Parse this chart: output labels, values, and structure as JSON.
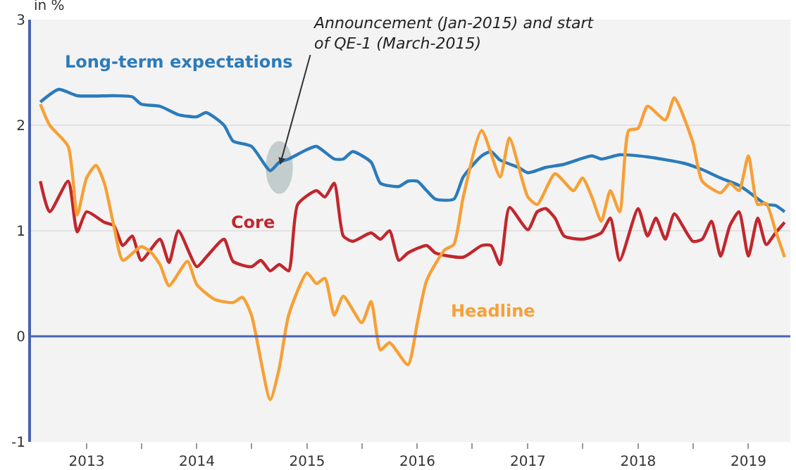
{
  "chart_data": {
    "type": "line",
    "ylabel": "in %",
    "xlim": [
      "2012-07-01",
      "2019-05-20"
    ],
    "xticks": [
      {
        "value": "2013-01-01",
        "label": "2013"
      },
      {
        "value": "2013-07-01",
        "label": null
      },
      {
        "value": "2014-01-01",
        "label": "2014"
      },
      {
        "value": "2014-07-01",
        "label": null
      },
      {
        "value": "2015-01-01",
        "label": "2015"
      },
      {
        "value": "2015-07-01",
        "label": null
      },
      {
        "value": "2016-01-01",
        "label": "2016"
      },
      {
        "value": "2016-07-01",
        "label": null
      },
      {
        "value": "2017-01-01",
        "label": "2017"
      },
      {
        "value": "2017-07-01",
        "label": null
      },
      {
        "value": "2018-01-01",
        "label": "2018"
      },
      {
        "value": "2018-07-01",
        "label": null
      },
      {
        "value": "2019-01-01",
        "label": "2019"
      }
    ],
    "ylim": [
      -1,
      3
    ],
    "yticks": [
      -1,
      0,
      1,
      2,
      3
    ],
    "grid": "y",
    "legend": false,
    "ref_lines": [
      {
        "axis": "y",
        "value": 0,
        "label": null,
        "color": "#4a63b0"
      }
    ],
    "annotations": [
      {
        "text": "Announcement (Jan-2015) and start of QE-1 (March-2015)",
        "x": "2014-10",
        "y": 1.6
      }
    ],
    "series": [
      {
        "name": "Long-term expectations",
        "color": "#2b7bba",
        "x": [
          "2012-08",
          "2012-10",
          "2012-12",
          "2013-04",
          "2013-06",
          "2013-07",
          "2013-09",
          "2013-11",
          "2014-01",
          "2014-02",
          "2014-04",
          "2014-05",
          "2014-07",
          "2014-09",
          "2014-10",
          "2014-11",
          "2015-01",
          "2015-02",
          "2015-04",
          "2015-05",
          "2015-06",
          "2015-08",
          "2015-09",
          "2015-11",
          "2015-12",
          "2016-01",
          "2016-02",
          "2016-03",
          "2016-05",
          "2016-06",
          "2016-08",
          "2016-09",
          "2016-10",
          "2016-12",
          "2017-01",
          "2017-03",
          "2017-05",
          "2017-08",
          "2017-09",
          "2017-11",
          "2018-02",
          "2018-06",
          "2018-08",
          "2018-10",
          "2018-12",
          "2019-01",
          "2019-03",
          "2019-04",
          "2019-05"
        ],
        "values": [
          2.22,
          2.34,
          2.28,
          2.28,
          2.27,
          2.2,
          2.18,
          2.1,
          2.08,
          2.12,
          2.0,
          1.85,
          1.8,
          1.57,
          1.65,
          1.68,
          1.77,
          1.8,
          1.68,
          1.68,
          1.75,
          1.65,
          1.45,
          1.42,
          1.47,
          1.47,
          1.38,
          1.3,
          1.3,
          1.51,
          1.71,
          1.75,
          1.67,
          1.6,
          1.55,
          1.6,
          1.63,
          1.71,
          1.68,
          1.72,
          1.7,
          1.64,
          1.58,
          1.5,
          1.43,
          1.37,
          1.25,
          1.24,
          1.18
        ]
      },
      {
        "name": "Core",
        "color": "#c1272d",
        "x": [
          "2012-08",
          "2012-09",
          "2012-11",
          "2012-12",
          "2013-01",
          "2013-03",
          "2013-04",
          "2013-05",
          "2013-06",
          "2013-07",
          "2013-09",
          "2013-10",
          "2013-11",
          "2014-01",
          "2014-02",
          "2014-04",
          "2014-05",
          "2014-07",
          "2014-08",
          "2014-09",
          "2014-10",
          "2014-11",
          "2014-12",
          "2015-02",
          "2015-03",
          "2015-04",
          "2015-05",
          "2015-06",
          "2015-08",
          "2015-09",
          "2015-10",
          "2015-11",
          "2015-12",
          "2016-02",
          "2016-03",
          "2016-06",
          "2016-08",
          "2016-09",
          "2016-10",
          "2016-11",
          "2017-01",
          "2017-02",
          "2017-03",
          "2017-04",
          "2017-05",
          "2017-07",
          "2017-09",
          "2017-10",
          "2017-11",
          "2018-01",
          "2018-02",
          "2018-03",
          "2018-04",
          "2018-05",
          "2018-07",
          "2018-08",
          "2018-09",
          "2018-10",
          "2018-11",
          "2018-12",
          "2019-01",
          "2019-02",
          "2019-03",
          "2019-04",
          "2019-05"
        ],
        "values": [
          1.47,
          1.18,
          1.47,
          0.99,
          1.18,
          1.08,
          1.05,
          0.86,
          0.95,
          0.72,
          0.92,
          0.7,
          1.0,
          0.66,
          0.75,
          0.92,
          0.71,
          0.66,
          0.72,
          0.62,
          0.68,
          0.62,
          1.25,
          1.38,
          1.32,
          1.45,
          0.95,
          0.9,
          0.98,
          0.92,
          1.0,
          0.72,
          0.79,
          0.86,
          0.79,
          0.75,
          0.86,
          0.86,
          0.68,
          1.22,
          1.01,
          1.18,
          1.21,
          1.12,
          0.95,
          0.92,
          0.98,
          1.12,
          0.72,
          1.21,
          0.95,
          1.12,
          0.92,
          1.16,
          0.9,
          0.92,
          1.09,
          0.76,
          1.05,
          1.18,
          0.76,
          1.12,
          0.87,
          0.98,
          1.08
        ]
      },
      {
        "name": "Headline",
        "color": "#f7a035",
        "x": [
          "2012-08",
          "2012-09",
          "2012-11",
          "2012-12",
          "2013-01",
          "2013-02",
          "2013-03",
          "2013-04",
          "2013-05",
          "2013-07",
          "2013-08",
          "2013-09",
          "2013-10",
          "2013-12",
          "2014-01",
          "2014-03",
          "2014-05",
          "2014-06",
          "2014-07",
          "2014-09",
          "2014-10",
          "2014-11",
          "2015-01",
          "2015-02",
          "2015-03",
          "2015-04",
          "2015-05",
          "2015-07",
          "2015-08",
          "2015-09",
          "2015-10",
          "2015-12",
          "2016-01",
          "2016-02",
          "2016-04",
          "2016-05",
          "2016-06",
          "2016-08",
          "2016-10",
          "2016-11",
          "2017-01",
          "2017-02",
          "2017-04",
          "2017-06",
          "2017-07",
          "2017-08",
          "2017-09",
          "2017-10",
          "2017-11",
          "2017-12",
          "2018-01",
          "2018-02",
          "2018-04",
          "2018-05",
          "2018-07",
          "2018-08",
          "2018-10",
          "2018-11",
          "2018-12",
          "2019-01",
          "2019-02",
          "2019-03",
          "2019-04",
          "2019-05"
        ],
        "values": [
          2.2,
          2.0,
          1.8,
          1.15,
          1.5,
          1.62,
          1.45,
          1.05,
          0.72,
          0.85,
          0.8,
          0.68,
          0.48,
          0.71,
          0.49,
          0.35,
          0.32,
          0.37,
          0.2,
          -0.6,
          -0.3,
          0.2,
          0.6,
          0.5,
          0.55,
          0.2,
          0.38,
          0.13,
          0.33,
          -0.13,
          -0.06,
          -0.27,
          0.13,
          0.53,
          0.82,
          0.87,
          1.32,
          1.95,
          1.51,
          1.88,
          1.32,
          1.25,
          1.54,
          1.38,
          1.5,
          1.32,
          1.09,
          1.38,
          1.18,
          1.95,
          1.97,
          2.18,
          2.05,
          2.26,
          1.84,
          1.47,
          1.36,
          1.45,
          1.38,
          1.71,
          1.25,
          1.26,
          1.0,
          0.75
        ]
      }
    ]
  }
}
